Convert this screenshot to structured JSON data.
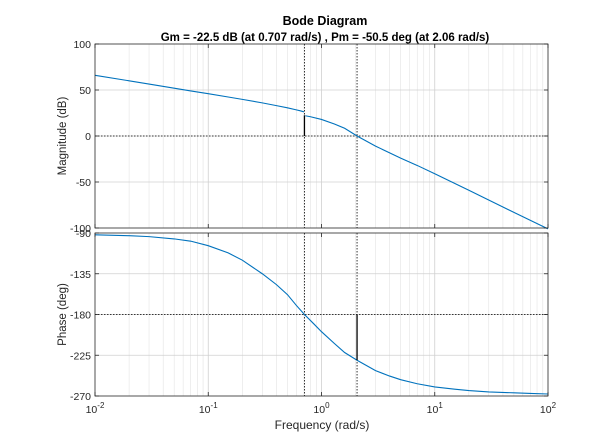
{
  "chart_data": {
    "type": "line",
    "title": "Bode Diagram",
    "subtitle": "Gm = -22.5 dB (at 0.707 rad/s) ,  Pm = -50.5 deg (at 2.06 rad/s)",
    "xlabel": "Frequency  (rad/s)",
    "xscale": "log",
    "xlim": [
      0.01,
      100
    ],
    "x_ticks": [
      {
        "value": 0.01,
        "base": "10",
        "exp": "-2"
      },
      {
        "value": 0.1,
        "base": "10",
        "exp": "-1"
      },
      {
        "value": 1,
        "base": "10",
        "exp": "0"
      },
      {
        "value": 10,
        "base": "10",
        "exp": "1"
      },
      {
        "value": 100,
        "base": "10",
        "exp": "2"
      }
    ],
    "grid": true,
    "line_color": "#0072bd",
    "axes_color": "#262626",
    "grid_color": "#d0d0d0",
    "margin_color": "#000000",
    "panels": [
      {
        "id": "magnitude",
        "ylabel": "Magnitude (dB)",
        "ylim": [
          -100,
          100
        ],
        "yticks": [
          -100,
          -50,
          0,
          50,
          100
        ],
        "reference_level": 0,
        "series": [
          {
            "x": [
              0.01,
              0.02,
              0.03,
              0.05,
              0.07,
              0.1,
              0.15,
              0.2,
              0.3,
              0.4,
              0.5,
              0.6,
              0.65,
              0.68,
              0.7
            ],
            "y": [
              66.0,
              60.0,
              56.5,
              52.0,
              49.0,
              46.0,
              42.4,
              39.8,
              36.0,
              33.0,
              30.6,
              28.4,
              27.4,
              26.7,
              26.3
            ]
          },
          {
            "x": [
              0.72,
              0.8,
              1.0,
              1.3,
              1.6,
              2.06,
              3,
              5,
              7,
              10,
              20,
              50,
              100
            ],
            "y": [
              22.0,
              20.9,
              18.0,
              13.0,
              8.4,
              0.0,
              -11.0,
              -24.0,
              -32.0,
              -41.0,
              -59.0,
              -83.0,
              -101.0
            ]
          }
        ],
        "margin_marker": {
          "frequency": 0.707,
          "from": 0,
          "to": 22.5
        }
      },
      {
        "id": "phase",
        "ylabel": "Phase (deg)",
        "ylim": [
          -270,
          -90
        ],
        "yticks": [
          -270,
          -225,
          -180,
          -135,
          -90
        ],
        "reference_level": -180,
        "series": [
          {
            "x": [
              0.01,
              0.02,
              0.03,
              0.05,
              0.07,
              0.1,
              0.15,
              0.2,
              0.3,
              0.4,
              0.5,
              0.6,
              0.707,
              0.85,
              1.0,
              1.3,
              1.6,
              2.06,
              3,
              4,
              5,
              7,
              10,
              15,
              20,
              30,
              50,
              70,
              100
            ],
            "y": [
              -92.0,
              -93.0,
              -94.0,
              -96.5,
              -99.0,
              -104.0,
              -112.0,
              -120.0,
              -135.0,
              -147.0,
              -158.0,
              -170.0,
              -180.0,
              -190.0,
              -199.0,
              -212.0,
              -222.0,
              -230.5,
              -242.0,
              -248.0,
              -252.0,
              -256.5,
              -260.0,
              -262.5,
              -264.0,
              -265.5,
              -266.5,
              -267.2,
              -267.8
            ]
          }
        ],
        "margin_marker": {
          "frequency": 2.06,
          "from": -180,
          "to": -230.5
        }
      }
    ]
  }
}
